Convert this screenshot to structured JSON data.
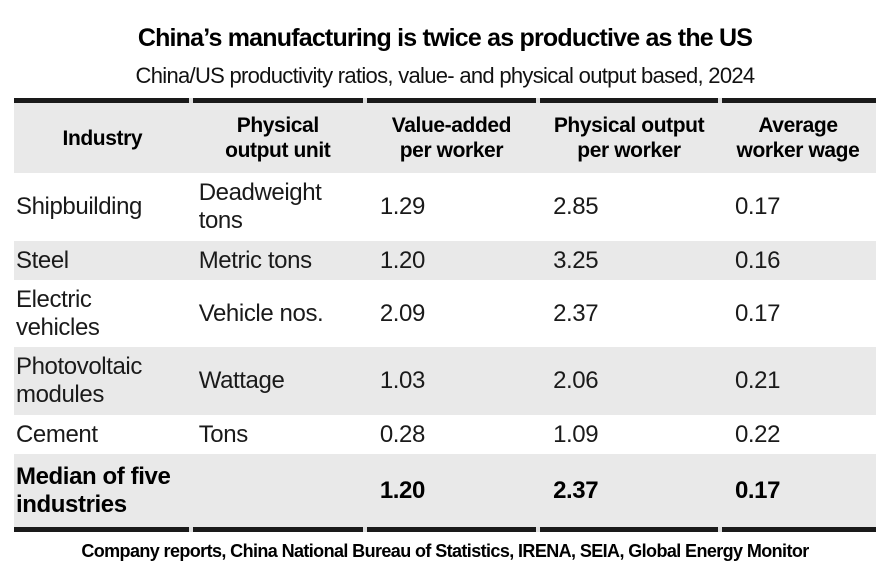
{
  "header": {
    "title": "China’s manufacturing is twice as productive as the US",
    "subtitle": "China/US productivity ratios, value- and physical output based, 2024"
  },
  "table": {
    "headers": [
      "Industry",
      "Physical\noutput unit",
      "Value-added\nper worker",
      "Physical output\nper worker",
      "Average\nworker wage"
    ],
    "rows": [
      {
        "industry": "Shipbuilding",
        "unit": "Deadweight\ntons",
        "value_added_per_worker": "1.29",
        "physical_output_per_worker": "2.85",
        "average_worker_wage": "0.17"
      },
      {
        "industry": "Steel",
        "unit": "Metric tons",
        "value_added_per_worker": "1.20",
        "physical_output_per_worker": "3.25",
        "average_worker_wage": "0.16"
      },
      {
        "industry": "Electric\nvehicles",
        "unit": "Vehicle nos.",
        "value_added_per_worker": "2.09",
        "physical_output_per_worker": "2.37",
        "average_worker_wage": "0.17"
      },
      {
        "industry": "Photovoltaic\nmodules",
        "unit": "Wattage",
        "value_added_per_worker": "1.03",
        "physical_output_per_worker": "2.06",
        "average_worker_wage": "0.21"
      },
      {
        "industry": "Cement",
        "unit": "Tons",
        "value_added_per_worker": "0.28",
        "physical_output_per_worker": "1.09",
        "average_worker_wage": "0.22"
      },
      {
        "industry": "Median of five\nindustries",
        "unit": "",
        "value_added_per_worker": "1.20",
        "physical_output_per_worker": "2.37",
        "average_worker_wage": "0.17"
      }
    ]
  },
  "footer": {
    "source": "Company reports, China National Bureau of Statistics, IRENA, SEIA, Global Energy Monitor"
  },
  "colors": {
    "stripe": "#e9e9e9",
    "rule": "#1a1a1a",
    "text": "#1a1a1a",
    "background": "#ffffff"
  },
  "chart_data": {
    "type": "table",
    "title": "China’s manufacturing is twice as productive as the US",
    "subtitle": "China/US productivity ratios, value- and physical output based, 2024",
    "columns": [
      "Industry",
      "Physical output unit",
      "Value-added per worker",
      "Physical output per worker",
      "Average worker wage"
    ],
    "rows": [
      [
        "Shipbuilding",
        "Deadweight tons",
        1.29,
        2.85,
        0.17
      ],
      [
        "Steel",
        "Metric tons",
        1.2,
        3.25,
        0.16
      ],
      [
        "Electric vehicles",
        "Vehicle nos.",
        2.09,
        2.37,
        0.17
      ],
      [
        "Photovoltaic modules",
        "Wattage",
        1.03,
        2.06,
        0.21
      ],
      [
        "Cement",
        "Tons",
        0.28,
        1.09,
        0.22
      ],
      [
        "Median of five industries",
        "",
        1.2,
        2.37,
        0.17
      ]
    ],
    "source": "Company reports, China National Bureau of Statistics, IRENA, SEIA, Global Energy Monitor"
  }
}
